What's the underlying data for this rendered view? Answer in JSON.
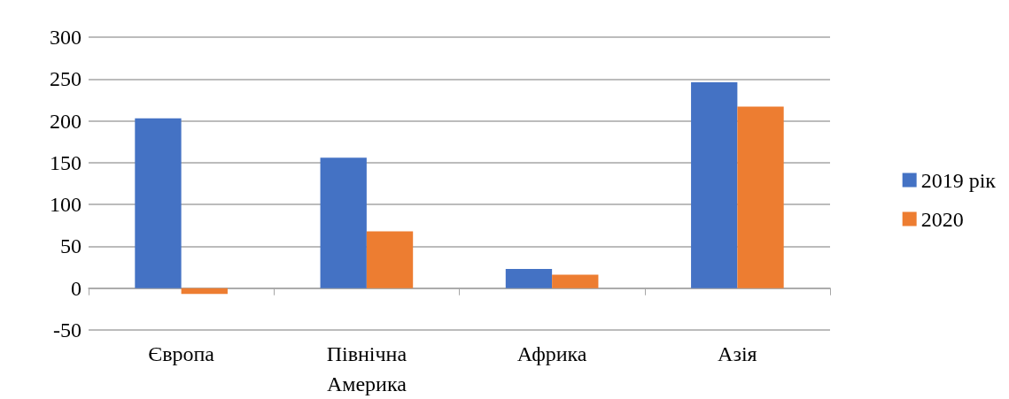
{
  "chart_data": {
    "type": "bar",
    "categories": [
      "Європа",
      "Північна\nАмерика",
      "Африка",
      "Азія"
    ],
    "series": [
      {
        "name": "2019 рік",
        "color": "#4472c4",
        "values": [
          203,
          156,
          23,
          246
        ]
      },
      {
        "name": "2020",
        "color": "#ed7d31",
        "values": [
          -7,
          68,
          16,
          217
        ]
      }
    ],
    "ylim": [
      -50,
      300
    ],
    "yticks": [
      -50,
      0,
      50,
      100,
      150,
      200,
      250,
      300
    ],
    "grid": "y",
    "legend": "right"
  }
}
